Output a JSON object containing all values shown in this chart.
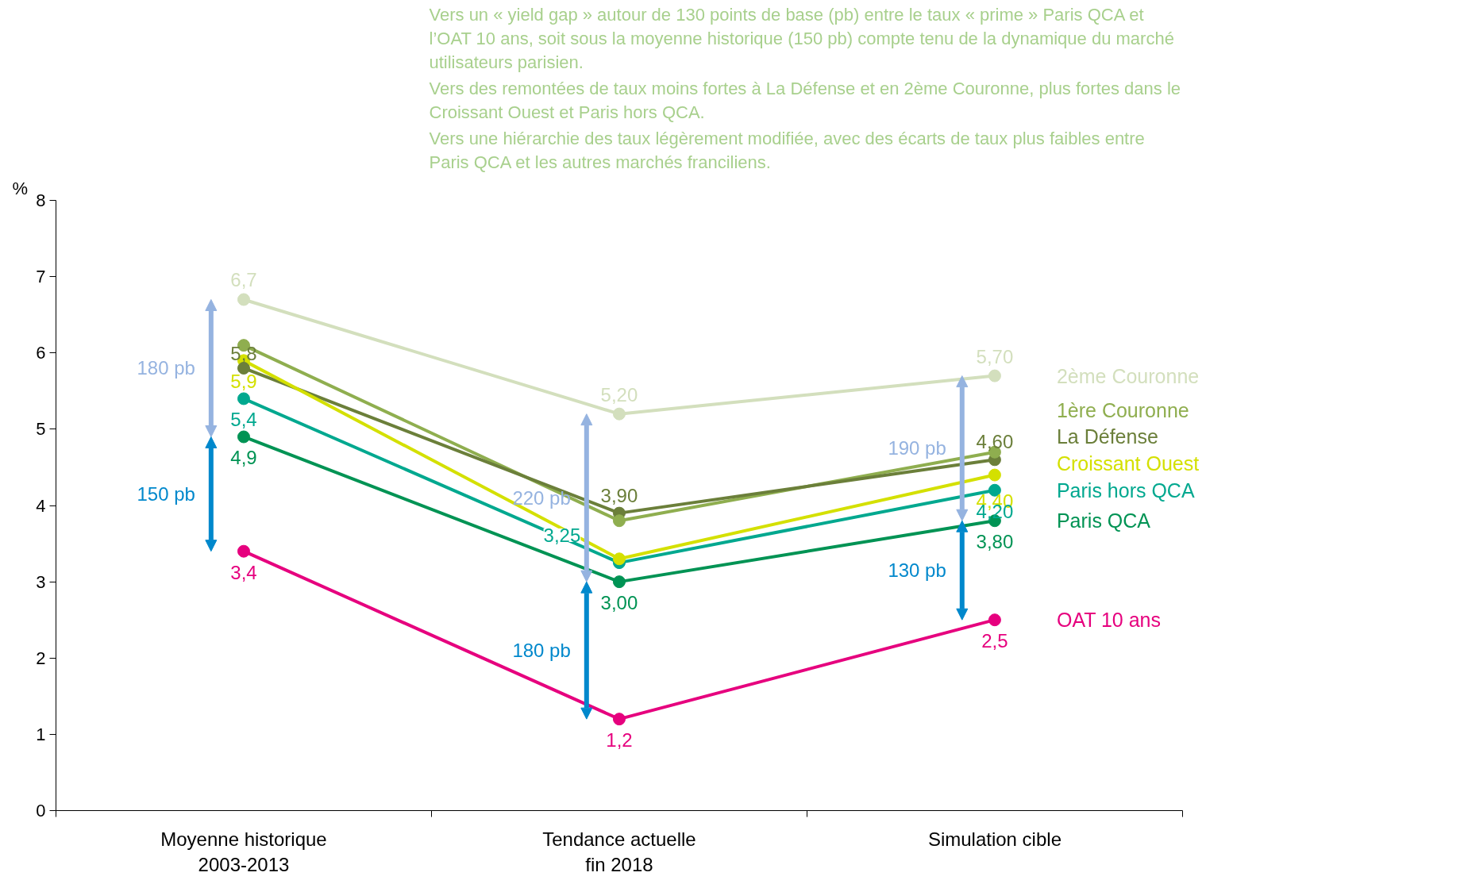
{
  "chart_data": {
    "type": "line",
    "ylabel": "%",
    "categories": [
      "Moyenne historique\n2003-2013",
      "Tendance actuelle\nfin 2018",
      "Simulation cible"
    ],
    "ylim": [
      0,
      8
    ],
    "yticks": [
      0,
      1,
      2,
      3,
      4,
      5,
      6,
      7,
      8
    ],
    "grid": false,
    "marker": "circle",
    "line_style": "solid",
    "series": [
      {
        "name": "2ème Couronne",
        "color": "#d3dfbd",
        "values": [
          6.7,
          5.2,
          5.7
        ],
        "value_labels": [
          "6,7",
          "5,20",
          "5,70"
        ]
      },
      {
        "name": "1ère Couronne",
        "color": "#8fae4f",
        "values": [
          6.1,
          3.8,
          4.7
        ],
        "value_labels": [
          null,
          null,
          null
        ]
      },
      {
        "name": "La Défense",
        "color": "#6b7f3a",
        "values": [
          5.8,
          3.9,
          4.6
        ],
        "value_labels": [
          "5,8",
          "3,90",
          "4,60"
        ]
      },
      {
        "name": "Croissant Ouest",
        "color": "#d4e000",
        "values": [
          5.9,
          3.3,
          4.4
        ],
        "value_labels": [
          "5,9",
          null,
          "4,40"
        ]
      },
      {
        "name": "Paris hors QCA",
        "color": "#00a88f",
        "values": [
          5.4,
          3.25,
          4.2
        ],
        "value_labels": [
          "5,4",
          "3,25",
          "4,20"
        ]
      },
      {
        "name": "Paris QCA",
        "color": "#009354",
        "values": [
          4.9,
          3.0,
          3.8
        ],
        "value_labels": [
          "4,9",
          "3,00",
          "3,80"
        ]
      },
      {
        "name": "OAT 10 ans",
        "color": "#e6007e",
        "values": [
          3.4,
          1.2,
          2.5
        ],
        "value_labels": [
          "3,4",
          "1,2",
          "2,5"
        ]
      }
    ],
    "annotations": [
      "180 pb",
      "150 pb",
      "220 pb",
      "180 pb",
      "190 pb",
      "130 pb",
      "Vers un « yield gap » autour de 130 points de base (pb) entre  le taux « prime » Paris QCA et l’OAT 10 ans, soit sous la moyenne historique (150 pb) compte tenu de la dynamique du marché utilisateurs parisien.",
      "Vers des remontées de taux moins fortes à La Défense et en 2ème Couronne, plus fortes dans le Croissant Ouest et Paris hors QCA.",
      "Vers une hiérarchie des taux légèrement modifiée, avec des écarts de taux plus faibles entre Paris QCA et les autres marchés franciliens."
    ]
  }
}
